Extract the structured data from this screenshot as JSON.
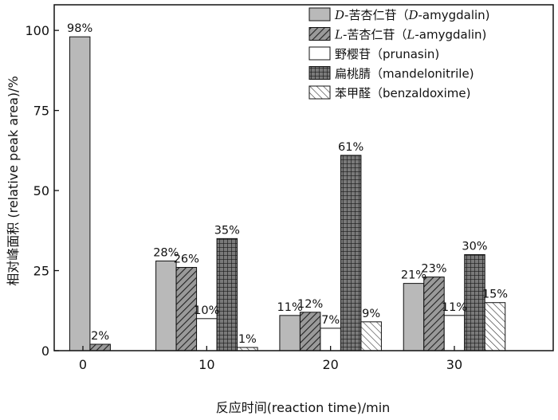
{
  "chart_data": {
    "type": "bar",
    "categories": [
      "0",
      "10",
      "20",
      "30"
    ],
    "series": [
      {
        "name_parts": [
          {
            "t": "D",
            "i": true
          },
          {
            "t": "-苦杏仁苷（"
          },
          {
            "t": "D",
            "i": true
          },
          {
            "t": "-amygdalin)"
          }
        ],
        "pattern": "solid-gray",
        "values": [
          98,
          28,
          11,
          21
        ],
        "labels": [
          "98%",
          "28%",
          "11%",
          "21%"
        ]
      },
      {
        "name_parts": [
          {
            "t": "L",
            "i": true
          },
          {
            "t": "-苦杏仁苷（"
          },
          {
            "t": "L",
            "i": true
          },
          {
            "t": "-amygdalin)"
          }
        ],
        "pattern": "diag-gray",
        "values": [
          2,
          26,
          12,
          23
        ],
        "labels": [
          "2%",
          "26%",
          "12%",
          "23%"
        ]
      },
      {
        "name_parts": [
          {
            "t": "野樱苷（prunasin)"
          }
        ],
        "pattern": "white",
        "values": [
          0,
          10,
          7,
          11
        ],
        "labels": [
          "",
          "10%",
          "7%",
          "11%"
        ]
      },
      {
        "name_parts": [
          {
            "t": "扁桃腈（mandelonitrile)"
          }
        ],
        "pattern": "grid",
        "values": [
          0,
          35,
          61,
          30
        ],
        "labels": [
          "",
          "35%",
          "61%",
          "30%"
        ]
      },
      {
        "name_parts": [
          {
            "t": "苯甲醛（benzaldoxime)"
          }
        ],
        "pattern": "diag-white",
        "values": [
          0,
          1,
          9,
          15
        ],
        "labels": [
          "",
          "1%",
          "9%",
          "15%"
        ]
      }
    ],
    "xlabel": "反应时间(reaction time)/min",
    "ylabel": "相对峰面积 (relative peak area)/%",
    "yticks": [
      0,
      25,
      50,
      75,
      100
    ],
    "ylim": [
      0,
      108
    ],
    "legend": "top-right",
    "grid": false
  }
}
